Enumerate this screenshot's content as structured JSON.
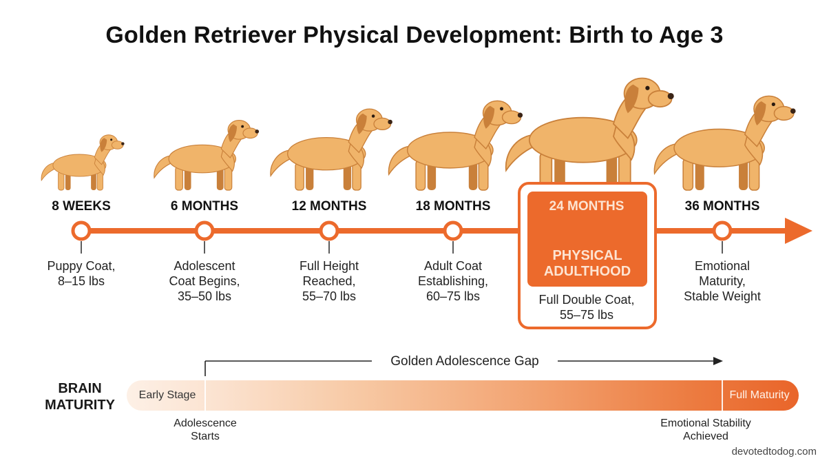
{
  "title": "Golden Retriever Physical Development: Birth to Age 3",
  "colors": {
    "accent": "#ec6a2c",
    "coat_light": "#f0b46a",
    "coat_dark": "#c9803a"
  },
  "milestones": [
    {
      "age": "8 WEEKS",
      "desc_lines": [
        "Puppy Coat,",
        "8–15 lbs"
      ],
      "icon": "puppy-icon",
      "size": 0.3
    },
    {
      "age": "6 MONTHS",
      "desc_lines": [
        "Adolescent",
        "Coat Begins,",
        "35–50 lbs"
      ],
      "icon": "young-dog-icon",
      "size": 0.48
    },
    {
      "age": "12 MONTHS",
      "desc_lines": [
        "Full Height",
        "Reached,",
        "55–70 lbs"
      ],
      "icon": "dog-icon",
      "size": 0.62
    },
    {
      "age": "18 MONTHS",
      "desc_lines": [
        "Adult Coat",
        "Establishing,",
        "60–75 lbs"
      ],
      "icon": "dog-icon",
      "size": 0.72
    },
    {
      "age": "24 MONTHS",
      "desc_lines": [
        "Full Double Coat,",
        "55–75 lbs"
      ],
      "icon": "adult-dog-icon",
      "size": 1.0,
      "highlight": true,
      "badge_lines": [
        "PHYSICAL",
        "ADULTHOOD"
      ]
    },
    {
      "age": "36 MONTHS",
      "desc_lines": [
        "Emotional",
        "Maturity,",
        "Stable Weight"
      ],
      "icon": "adult-dog-icon",
      "size": 0.78
    }
  ],
  "brain": {
    "label_lines": [
      "BRAIN",
      "MATURITY"
    ],
    "start_label": "Early Stage",
    "end_label": "Full Maturity",
    "gap_label": "Golden Adolescence Gap",
    "start_caption_lines": [
      "Adolescence",
      "Starts"
    ],
    "end_caption_lines": [
      "Emotional Stability",
      "Achieved"
    ]
  },
  "credit": "devotedtodog.com"
}
